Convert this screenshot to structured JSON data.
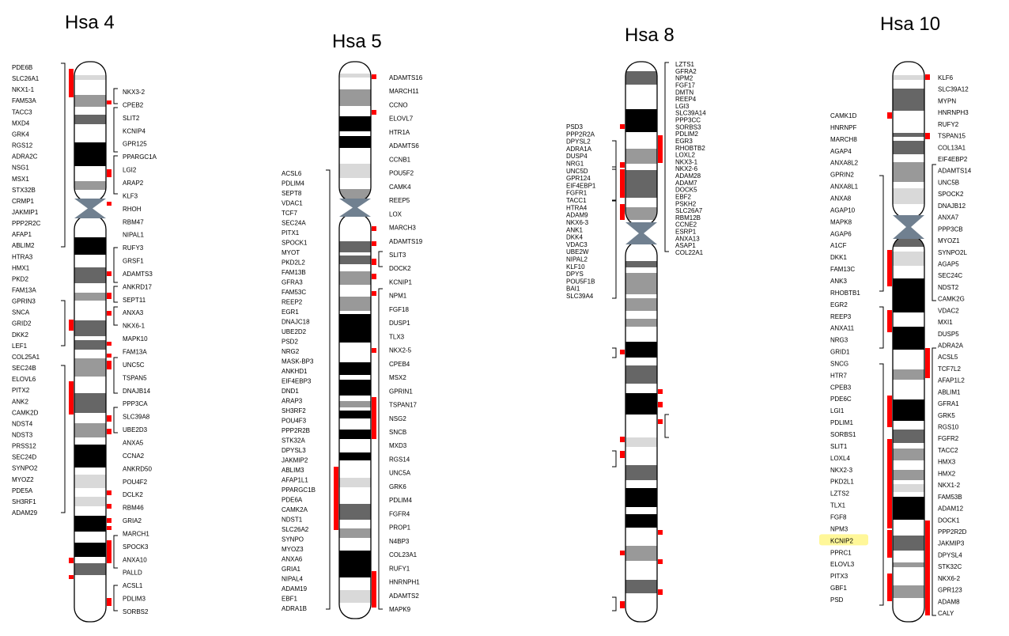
{
  "colors": {
    "black": "#000000",
    "dark": "#666666",
    "mid": "#999999",
    "light": "#d9d9d9",
    "white": "#ffffff",
    "centromere": "#708090",
    "marker": "#ff0000",
    "highlight": "#fff799"
  },
  "chromosomes": [
    {
      "name": "Hsa 4",
      "left_genes": [
        "PDE6B",
        "SLC26A1",
        "NKX1-1",
        "FAM53A",
        "TACC3",
        "MXD4",
        "GRK4",
        "RGS12",
        "ADRA2C",
        "NSG1",
        "MSX1",
        "STX32B",
        "CRMP1",
        "JAKMIP1",
        "PPP2R2C",
        "AFAP1",
        "ABLIM2",
        "HTRA3",
        "HMX1",
        "PKD2",
        "FAM13A",
        "GPRIN3",
        "SNCA",
        "GRID2",
        "DKK2",
        "LEF1",
        "COL25A1",
        "SEC24B",
        "ELOVL6",
        "PITX2",
        "ANK2",
        "CAMK2D",
        "NDST4",
        "NDST3",
        "PRSS12",
        "SEC24D",
        "SYNPO2",
        "MYOZ2",
        "PDE5A",
        "SH3RF1",
        "ADAM29"
      ],
      "right_genes": [
        "NKX3-2",
        "CPEB2",
        "SLIT2",
        "KCNIP4",
        "GPR125",
        "PPARGC1A",
        "LGI2",
        "ARAP2",
        "KLF3",
        "RHOH",
        "RBM47",
        "NIPAL1",
        "RUFY3",
        "GRSF1",
        "ADAMTS3",
        "ANKRD17",
        "SEPT11",
        "ANXA3",
        "NKX6-1",
        "MAPK10",
        "FAM13A",
        "UNC5C",
        "TSPAN5",
        "DNAJB14",
        "PPP3CA",
        "SLC39A8",
        "UBE2D3",
        "ANXA5",
        "CCNA2",
        "ANKRD50",
        "POU4F2",
        "DCLK2",
        "RBM46",
        "GRIA2",
        "MARCH1",
        "SPOCK3",
        "ANXA10",
        "PALLD",
        "ACSL1",
        "PDLIM3",
        "SORBS2"
      ]
    },
    {
      "name": "Hsa 5",
      "left_genes": [
        "ACSL6",
        "PDLIM4",
        "SEPT8",
        "VDAC1",
        "TCF7",
        "SEC24A",
        "PITX1",
        "SPOCK1",
        "MYOT",
        "PKD2L2",
        "FAM13B",
        "GFRA3",
        "FAM53C",
        "REEP2",
        "EGR1",
        "DNAJC18",
        "UBE2D2",
        "PSD2",
        "NRG2",
        "MASK-BP3",
        "ANKHD1",
        "EIF4EBP3",
        "DND1",
        "ARAP3",
        "SH3RF2",
        "POU4F3",
        "PPP2R2B",
        "STK32A",
        "DPYSL3",
        "JAKMIP2",
        "ABLIM3",
        "AFAP1L1",
        "PPARGC1B",
        "PDE6A",
        "CAMK2A",
        "NDST1",
        "SLC26A2",
        "SYNPO",
        "MYOZ3",
        "ANXA6",
        "GRIA1",
        "NIPAL4",
        "ADAM19",
        "EBF1",
        "ADRA1B"
      ],
      "right_genes": [
        "ADAMTS16",
        "MARCH11",
        "CCNO",
        "ELOVL7",
        "HTR1A",
        "ADAMTS6",
        "CCNB1",
        "POU5F2",
        "CAMK4",
        "REEP5",
        "LOX",
        "MARCH3",
        "ADAMTS19",
        "SLIT3",
        "DOCK2",
        "KCNIP1",
        "NPM1",
        "FGF18",
        "DUSP1",
        "TLX3",
        "NKX2-5",
        "CPEB4",
        "MSX2",
        "GPRIN1",
        "TSPAN17",
        "NSG2",
        "SNCB",
        "MXD3",
        "RGS14",
        "UNC5A",
        "GRK6",
        "PDLIM4",
        "FGFR4",
        "PROP1",
        "N4BP3",
        "COL23A1",
        "RUFY1",
        "HNRNPH1",
        "ADAMTS2",
        "MAPK9"
      ]
    },
    {
      "name": "Hsa 8",
      "left_genes": [
        "PSD3",
        "PPP2R2A",
        "DPYSL2",
        "ADRA1A",
        "DUSP4",
        "NRG1",
        "UNC5D",
        "GPR124",
        "EIF4EBP1",
        "FGFR1",
        "TACC1",
        "HTRA4",
        "ADAM9",
        "NKX6-3",
        "ANK1",
        "DKK4",
        "VDAC3",
        "UBE2W",
        "NIPAL2",
        "KLF10",
        "DPYS",
        "POU5F1B",
        "BAI1",
        "SLC39A4"
      ],
      "right_genes": [
        "LZTS1",
        "GFRA2",
        "NPM2",
        "FGF17",
        "DMTN",
        "REEP4",
        "LGI3",
        "SLC39A14",
        "PPP3CC",
        "SORBS3",
        "PDLIM2",
        "EGR3",
        "RHOBTB2",
        "LOXL2",
        "NKX3-1",
        "NKX2-6",
        "ADAM28",
        "ADAM7",
        "DOCK5",
        "EBF2",
        "PSKH2",
        "SLC26A7",
        "RBM12B",
        "CCNE2",
        "ESRP1",
        "ANXA13",
        "ASAP1",
        "COL22A1"
      ]
    },
    {
      "name": "Hsa 10",
      "left_genes": [
        "CAMK1D",
        "HNRNPF",
        "MARCH8",
        "AGAP4",
        "ANXA8L2",
        "GPRIN2",
        "ANXA8L1",
        "ANXA8",
        "AGAP10",
        "MAPK8",
        "AGAP6",
        "A1CF",
        "DKK1",
        "FAM13C",
        "ANK3",
        "RHOBTB1",
        "EGR2",
        "REEP3",
        "ANXA11",
        "NRG3",
        "GRID1",
        "SNCG",
        "HTR7",
        "CPEB3",
        "PDE6C",
        "LGI1",
        "PDLIM1",
        "SORBS1",
        "SLIT1",
        "LOXL4",
        "NKX2-3",
        "PKD2L1",
        "LZTS2",
        "TLX1",
        "FGF8",
        "NPM3",
        "KCNIP2",
        "PPRC1",
        "ELOVL3",
        "PITX3",
        "GBF1",
        "PSD"
      ],
      "right_genes": [
        "KLF6",
        "SLC39A12",
        "MYPN",
        "HNRNPH3",
        "RUFY2",
        "TSPAN15",
        "COL13A1",
        "EIF4EBP2",
        "ADAMTS14",
        "UNC5B",
        "SPOCK2",
        "DNAJB12",
        "ANXA7",
        "PPP3CB",
        "MYOZ1",
        "SYNPO2L",
        "AGAP5",
        "SEC24C",
        "NDST2",
        "CAMK2G",
        "VDAC2",
        "MXI1",
        "DUSP5",
        "ADRA2A",
        "ACSL5",
        "TCF7L2",
        "AFAP1L2",
        "ABLIM1",
        "GFRA1",
        "GRK5",
        "RGS10",
        "FGFR2",
        "TACC2",
        "HMX3",
        "HMX2",
        "NKX1-2",
        "FAM53B",
        "ADAM12",
        "DOCK1",
        "PPP2R2D",
        "JAKMIP3",
        "DPYSL4",
        "STK32C",
        "NKX6-2",
        "GPR123",
        "ADAM8",
        "CALY"
      ],
      "highlighted_gene": "KCNIP2"
    }
  ]
}
